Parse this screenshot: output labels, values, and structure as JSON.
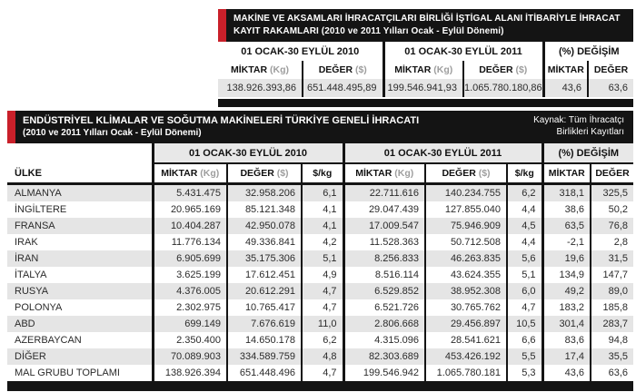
{
  "colors": {
    "accent_red": "#c9202a",
    "bar_black": "#141414",
    "row_gray": "#e5e5e5",
    "unit_gray": "#9e9e9e"
  },
  "table1": {
    "title": "MAKİNE VE AKSAMLARI İHRACATÇILARI BİRLİĞİ İŞTİGAL ALANI İTİBARİYLE İHRACAT KAYIT RAKAMLARI (2010 ve 2011 Yılları Ocak - Eylül Dönemi)",
    "groups": [
      "01 OCAK-30 EYLÜL 2010",
      "01 OCAK-30 EYLÜL 2011",
      "(%) DEĞİŞİM"
    ],
    "subcols": [
      {
        "label": "MİKTAR",
        "unit": "(Kg)"
      },
      {
        "label": "DEĞER",
        "unit": "($)"
      },
      {
        "label": "MİKTAR",
        "unit": "(Kg)"
      },
      {
        "label": "DEĞER",
        "unit": "($)"
      },
      {
        "label": "MİKTAR",
        "unit": ""
      },
      {
        "label": "DEĞER",
        "unit": ""
      }
    ],
    "row": [
      "138.926.393,86",
      "651.448.495,89",
      "199.546.941,93",
      "1.065.780.180,86",
      "43,6",
      "63,6"
    ]
  },
  "table2": {
    "title_line1": "ENDÜSTRİYEL KLİMALAR VE SOĞUTMA MAKİNELERİ TÜRKİYE GENELİ İHRACATI",
    "title_line2": "(2010 ve 2011 Yılları Ocak - Eylül Dönemi)",
    "source_line1": "Kaynak: Tüm İhracatçı",
    "source_line2": "Birlikleri Kayıtları",
    "country_header": "ÜLKE",
    "groups": [
      "01 OCAK-30 EYLÜL 2010",
      "01 OCAK-30 EYLÜL 2011",
      "(%) DEĞİŞİM"
    ],
    "subcols": [
      {
        "label": "MİKTAR",
        "unit": "(Kg)"
      },
      {
        "label": "DEĞER",
        "unit": "($)"
      },
      {
        "label": "$/kg",
        "unit": ""
      },
      {
        "label": "MİKTAR",
        "unit": "(Kg)"
      },
      {
        "label": "DEĞER",
        "unit": "($)"
      },
      {
        "label": "$/kg",
        "unit": ""
      },
      {
        "label": "MİKTAR",
        "unit": ""
      },
      {
        "label": "DEĞER",
        "unit": ""
      }
    ],
    "rows": [
      [
        "ALMANYA",
        "5.431.475",
        "32.958.206",
        "6,1",
        "22.711.616",
        "140.234.755",
        "6,2",
        "318,1",
        "325,5"
      ],
      [
        "İNGİLTERE",
        "20.965.169",
        "85.121.348",
        "4,1",
        "29.047.439",
        "127.855.040",
        "4,4",
        "38,6",
        "50,2"
      ],
      [
        "FRANSA",
        "10.404.287",
        "42.950.078",
        "4,1",
        "17.009.547",
        "75.946.909",
        "4,5",
        "63,5",
        "76,8"
      ],
      [
        "IRAK",
        "11.776.134",
        "49.336.841",
        "4,2",
        "11.528.363",
        "50.712.508",
        "4,4",
        "-2,1",
        "2,8"
      ],
      [
        "İRAN",
        "6.905.699",
        "35.175.306",
        "5,1",
        "8.256.833",
        "46.263.835",
        "5,6",
        "19,6",
        "31,5"
      ],
      [
        "İTALYA",
        "3.625.199",
        "17.612.451",
        "4,9",
        "8.516.114",
        "43.624.355",
        "5,1",
        "134,9",
        "147,7"
      ],
      [
        "RUSYA",
        "4.376.005",
        "20.612.291",
        "4,7",
        "6.529.852",
        "38.952.308",
        "6,0",
        "49,2",
        "89,0"
      ],
      [
        "POLONYA",
        "2.302.975",
        "10.765.417",
        "4,7",
        "6.521.726",
        "30.765.762",
        "4,7",
        "183,2",
        "185,8"
      ],
      [
        "ABD",
        "699.149",
        "7.676.619",
        "11,0",
        "2.806.668",
        "29.456.897",
        "10,5",
        "301,4",
        "283,7"
      ],
      [
        "AZERBAYCAN",
        "2.350.400",
        "14.650.178",
        "6,2",
        "4.315.096",
        "28.541.621",
        "6,6",
        "83,6",
        "94,8"
      ],
      [
        "DİĞER",
        "70.089.903",
        "334.589.759",
        "4,8",
        "82.303.689",
        "453.426.192",
        "5,5",
        "17,4",
        "35,5"
      ],
      [
        "MAL GRUBU TOPLAMI",
        "138.926.394",
        "651.448.496",
        "4,7",
        "199.546.942",
        "1.065.780.181",
        "5,3",
        "43,6",
        "63,6"
      ]
    ]
  }
}
